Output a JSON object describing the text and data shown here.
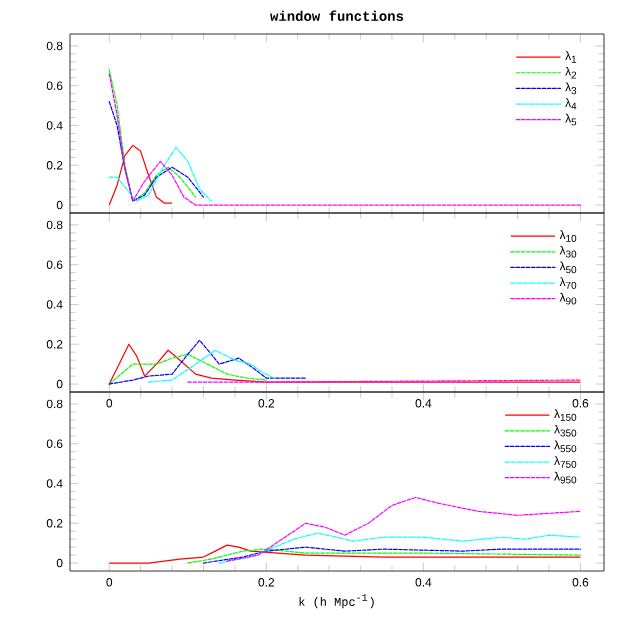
{
  "chart_data": [
    {
      "type": "line",
      "title": "window functions",
      "xlim": [
        -0.05,
        0.63
      ],
      "ylim": [
        -0.04,
        0.86
      ],
      "xticks": [
        0,
        0.2,
        0.4,
        0.6
      ],
      "yticks": [
        0,
        0.2,
        0.4,
        0.6,
        0.8
      ],
      "tick_labels": "y",
      "legend": "top right",
      "grid": false,
      "series": [
        {
          "name": "λ$_{1}$",
          "color": "#ff0000",
          "line_style": "solid",
          "x": [
            0,
            0.01,
            0.02,
            0.03,
            0.04,
            0.05,
            0.06,
            0.07,
            0.08
          ],
          "values": [
            0,
            0.1,
            0.25,
            0.3,
            0.27,
            0.15,
            0.04,
            0.01,
            0.01
          ]
        },
        {
          "name": "λ$_{2}$",
          "color": "#00ff00",
          "line_style": "dashed",
          "x": [
            0,
            0.01,
            0.02,
            0.03,
            0.045,
            0.06,
            0.075,
            0.09,
            0.11
          ],
          "values": [
            0.68,
            0.5,
            0.2,
            0.02,
            0.06,
            0.15,
            0.19,
            0.14,
            0.04
          ]
        },
        {
          "name": "λ$_{3}$",
          "color": "#0000ff",
          "line_style": "dashed",
          "x": [
            0,
            0.01,
            0.02,
            0.03,
            0.045,
            0.06,
            0.08,
            0.1,
            0.12
          ],
          "values": [
            0.52,
            0.4,
            0.18,
            0.02,
            0.05,
            0.14,
            0.19,
            0.14,
            0.04
          ]
        },
        {
          "name": "λ$_{4}$",
          "color": "#00ffff",
          "line_style": "dotted",
          "x": [
            0,
            0.01,
            0.02,
            0.035,
            0.05,
            0.07,
            0.085,
            0.1,
            0.115,
            0.13
          ],
          "values": [
            0.14,
            0.14,
            0.09,
            0.02,
            0.05,
            0.2,
            0.29,
            0.22,
            0.08,
            0.02
          ]
        },
        {
          "name": "λ$_{5}$",
          "color": "#ff00ff",
          "line_style": "dashed",
          "x": [
            0,
            0.01,
            0.02,
            0.03,
            0.045,
            0.065,
            0.08,
            0.095,
            0.11,
            0.6
          ],
          "values": [
            0.66,
            0.45,
            0.18,
            0.02,
            0.12,
            0.22,
            0.15,
            0.04,
            0,
            0
          ]
        }
      ]
    },
    {
      "type": "line",
      "xlim": [
        -0.05,
        0.63
      ],
      "ylim": [
        -0.04,
        0.86
      ],
      "xticks": [
        0,
        0.2,
        0.4,
        0.6
      ],
      "yticks": [
        0,
        0.2,
        0.4,
        0.6,
        0.8
      ],
      "legend": "top right",
      "grid": false,
      "series": [
        {
          "name": "λ$_{10}$",
          "color": "#ff0000",
          "line_style": "solid",
          "x": [
            0,
            0.01,
            0.025,
            0.035,
            0.045,
            0.06,
            0.075,
            0.09,
            0.11,
            0.13,
            0.16,
            0.2,
            0.6
          ],
          "values": [
            0,
            0.08,
            0.2,
            0.14,
            0.04,
            0.1,
            0.17,
            0.12,
            0.05,
            0.03,
            0.02,
            0.01,
            0.01
          ]
        },
        {
          "name": "λ$_{30}$",
          "color": "#00ff00",
          "line_style": "dashed",
          "x": [
            0,
            0.015,
            0.03,
            0.06,
            0.08,
            0.1,
            0.125,
            0.15,
            0.175,
            0.2
          ],
          "values": [
            0,
            0.05,
            0.1,
            0.1,
            0.13,
            0.15,
            0.1,
            0.05,
            0.03,
            0.02
          ]
        },
        {
          "name": "λ$_{50}$",
          "color": "#0000ff",
          "line_style": "dashed",
          "x": [
            0,
            0.03,
            0.05,
            0.08,
            0.1,
            0.115,
            0.13,
            0.14,
            0.165,
            0.18,
            0.2,
            0.25
          ],
          "values": [
            0,
            0.02,
            0.04,
            0.05,
            0.15,
            0.22,
            0.15,
            0.1,
            0.13,
            0.09,
            0.03,
            0.03
          ]
        },
        {
          "name": "λ$_{70}$",
          "color": "#00ffff",
          "line_style": "dotted",
          "x": [
            0.05,
            0.08,
            0.11,
            0.135,
            0.16,
            0.18,
            0.195,
            0.21
          ],
          "values": [
            0.01,
            0.02,
            0.1,
            0.17,
            0.12,
            0.1,
            0.06,
            0.03
          ]
        },
        {
          "name": "λ$_{90}$",
          "color": "#ff00ff",
          "line_style": "dashed",
          "x": [
            0.1,
            0.2,
            0.6
          ],
          "values": [
            0.01,
            0.01,
            0.02
          ]
        }
      ]
    },
    {
      "type": "line",
      "xlabel": "k (h Mpc$^{-1}$)",
      "xlim": [
        -0.05,
        0.63
      ],
      "ylim": [
        -0.04,
        0.86
      ],
      "xticks": [
        0,
        0.2,
        0.4,
        0.6
      ],
      "yticks": [
        0,
        0.2,
        0.4,
        0.6,
        0.8
      ],
      "legend": "top right",
      "grid": false,
      "series": [
        {
          "name": "λ$_{150}$",
          "color": "#ff0000",
          "line_style": "solid",
          "x": [
            0,
            0.05,
            0.09,
            0.12,
            0.135,
            0.15,
            0.165,
            0.18,
            0.25,
            0.35,
            0.6
          ],
          "values": [
            0,
            0,
            0.02,
            0.03,
            0.06,
            0.09,
            0.08,
            0.06,
            0.04,
            0.03,
            0.03
          ]
        },
        {
          "name": "λ$_{350}$",
          "color": "#00ff00",
          "line_style": "dashed",
          "x": [
            0.1,
            0.13,
            0.17,
            0.2,
            0.25,
            0.4,
            0.6
          ],
          "values": [
            0,
            0.02,
            0.06,
            0.07,
            0.05,
            0.05,
            0.04
          ]
        },
        {
          "name": "λ$_{550}$",
          "color": "#0000ff",
          "line_style": "dashed",
          "x": [
            0.12,
            0.17,
            0.2,
            0.25,
            0.3,
            0.35,
            0.45,
            0.5,
            0.6
          ],
          "values": [
            0,
            0.03,
            0.06,
            0.08,
            0.06,
            0.07,
            0.06,
            0.07,
            0.07
          ]
        },
        {
          "name": "λ$_{750}$",
          "color": "#00ffff",
          "line_style": "dotted",
          "x": [
            0.14,
            0.18,
            0.21,
            0.235,
            0.265,
            0.29,
            0.31,
            0.35,
            0.4,
            0.45,
            0.5,
            0.53,
            0.56,
            0.6
          ],
          "values": [
            0,
            0.03,
            0.08,
            0.12,
            0.15,
            0.13,
            0.11,
            0.13,
            0.13,
            0.11,
            0.13,
            0.12,
            0.14,
            0.13
          ]
        },
        {
          "name": "λ$_{950}$",
          "color": "#ff00ff",
          "line_style": "dashed",
          "x": [
            0.15,
            0.19,
            0.22,
            0.25,
            0.275,
            0.3,
            0.33,
            0.36,
            0.39,
            0.42,
            0.47,
            0.52,
            0.56,
            0.6
          ],
          "values": [
            0.01,
            0.04,
            0.12,
            0.2,
            0.18,
            0.14,
            0.2,
            0.29,
            0.33,
            0.3,
            0.26,
            0.24,
            0.25,
            0.26
          ]
        }
      ]
    }
  ]
}
